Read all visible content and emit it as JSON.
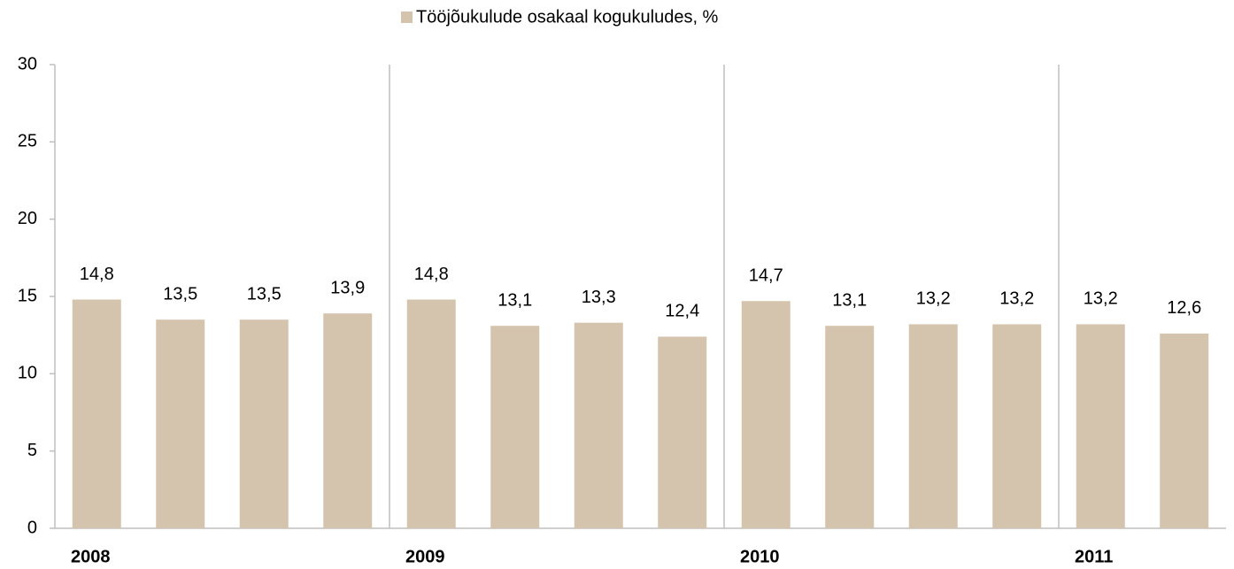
{
  "chart_data": {
    "type": "bar",
    "categories": [
      "2008",
      null,
      null,
      null,
      "2009",
      null,
      null,
      null,
      "2010",
      null,
      null,
      null,
      "2011",
      null
    ],
    "series": [
      {
        "name": "Tööjõukulude osakaal kogukuludes, %",
        "color": "#d5c4ad",
        "values": [
          14.8,
          13.5,
          13.5,
          13.9,
          14.8,
          13.1,
          13.3,
          12.4,
          14.7,
          13.1,
          13.2,
          13.2,
          13.2,
          12.6
        ],
        "value_labels": [
          "14,8",
          "13,5",
          "13,5",
          "13,9",
          "14,8",
          "13,1",
          "13,3",
          "12,4",
          "14,7",
          "13,1",
          "13,2",
          "13,2",
          "13,2",
          "12,6"
        ]
      }
    ],
    "ylim": [
      0,
      30
    ],
    "yticks": [
      0,
      5,
      10,
      15,
      20,
      25,
      30
    ],
    "grid": false,
    "legend": "top"
  }
}
